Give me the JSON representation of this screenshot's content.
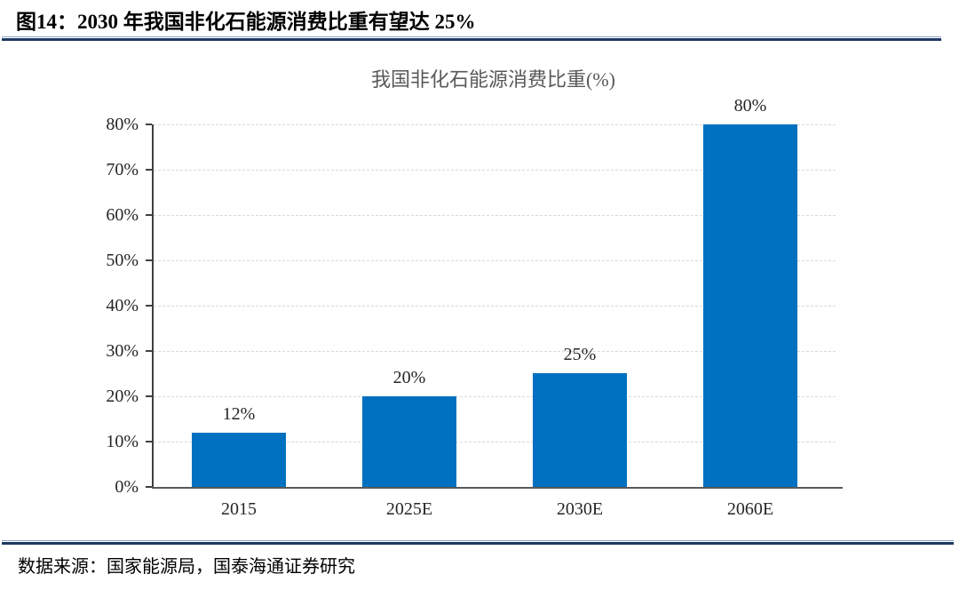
{
  "figure": {
    "title": "图14：2030 年我国非化石能源消费比重有望达 25%",
    "source": "数据来源：国家能源局，国泰海通证券研究"
  },
  "chart_data": {
    "type": "bar",
    "title": "我国非化石能源消费比重(%)",
    "categories": [
      "2015",
      "2025E",
      "2030E",
      "2060E"
    ],
    "values": [
      12,
      20,
      25,
      80
    ],
    "bar_labels": [
      "12%",
      "20%",
      "25%",
      "80%"
    ],
    "xlabel": "",
    "ylabel": "",
    "ylim": [
      0,
      80
    ],
    "ytick_step": 10,
    "ytick_labels": [
      "0%",
      "10%",
      "20%",
      "30%",
      "40%",
      "50%",
      "60%",
      "70%",
      "80%"
    ],
    "grid": "horizontal-dashed",
    "legend": "none",
    "colors": {
      "bar": "#0070C0",
      "grid": "#D9D9D9",
      "axis": "#404040",
      "chart_title": "#595959",
      "rule_navy": "#1F3864",
      "label_text": "#262626"
    }
  }
}
